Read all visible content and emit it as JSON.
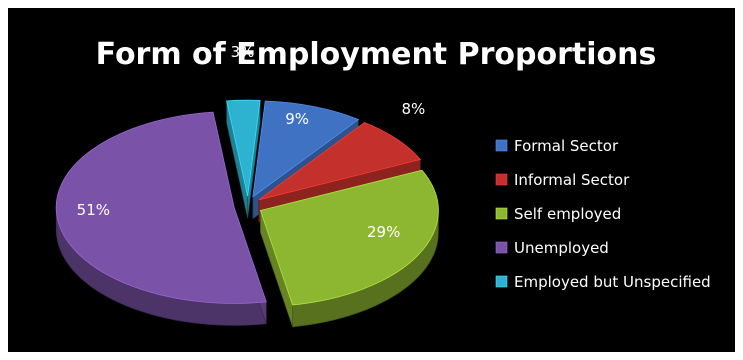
{
  "chart_data": {
    "type": "pie",
    "title": "Form of Employment Proportions",
    "exploded": true,
    "three_d": true,
    "legend_position": "right",
    "slices": [
      {
        "label": "Formal Sector",
        "value": 9,
        "display": "9%",
        "color": "#3F72C2"
      },
      {
        "label": "Informal Sector",
        "value": 8,
        "display": "8%",
        "color": "#C4302B"
      },
      {
        "label": "Self employed",
        "value": 29,
        "display": "29%",
        "color": "#8DB731"
      },
      {
        "label": "Unemployed",
        "value": 51,
        "display": "51%",
        "color": "#7A52A8"
      },
      {
        "label": "Employed but Unspecified",
        "value": 3,
        "display": "3%",
        "color": "#2DB3CF"
      }
    ]
  }
}
